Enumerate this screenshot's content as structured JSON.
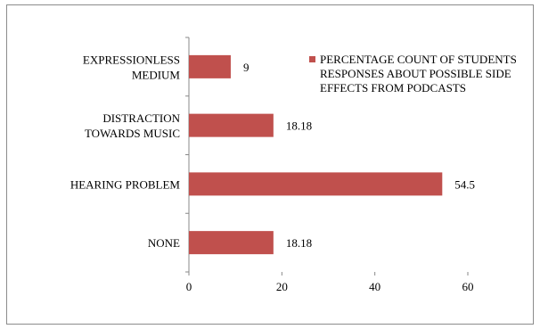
{
  "chart_data": {
    "type": "bar",
    "orientation": "horizontal",
    "categories": [
      "NONE",
      "HEARING PROBLEM",
      "DISTRACTION TOWARDS MUSIC",
      "EXPRESSIONLESS MEDIUM"
    ],
    "category_lines": [
      [
        "NONE"
      ],
      [
        "HEARING PROBLEM"
      ],
      [
        "DISTRACTION",
        "TOWARDS MUSIC"
      ],
      [
        "EXPRESSIONLESS",
        "MEDIUM"
      ]
    ],
    "series": [
      {
        "name": "PERCENTAGE COUNT OF STUDENTS RESPONSES ABOUT POSSIBLE SIDE EFFECTS FROM PODCASTS",
        "values": [
          18.18,
          54.5,
          18.18,
          9
        ],
        "data_labels": [
          "18.18",
          "54.5",
          "18.18",
          "9"
        ]
      }
    ],
    "xlim": [
      0,
      60
    ],
    "xticks": [
      "0",
      "20",
      "40",
      "60"
    ],
    "grid": false,
    "legend_position": "top-right"
  },
  "colors": {
    "bar": "#c0504d",
    "axis": "#888888",
    "frame": "#8c8c8c"
  }
}
